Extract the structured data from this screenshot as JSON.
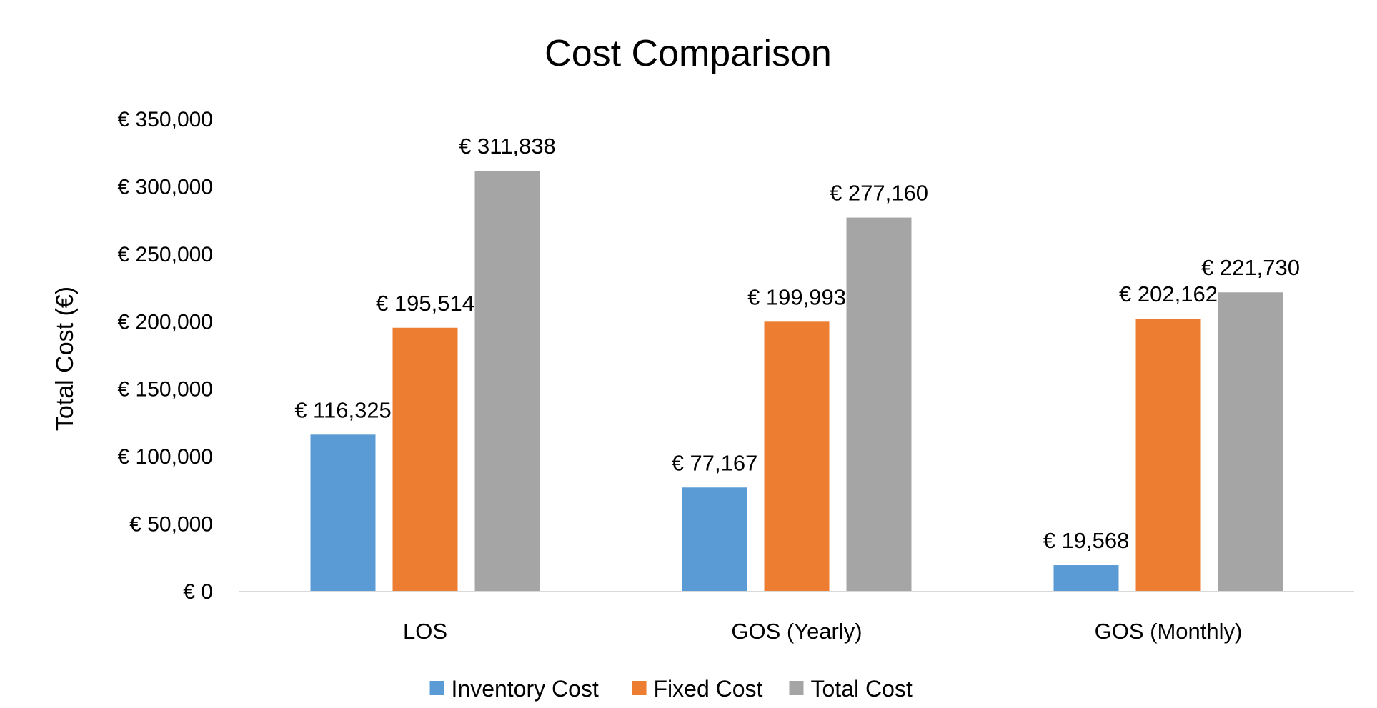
{
  "chart_data": {
    "type": "bar",
    "title": "Cost Comparison",
    "ylabel": "Total Cost (€)",
    "xlabel": "",
    "ylim": [
      0,
      350000
    ],
    "y_ticks": [
      0,
      50000,
      100000,
      150000,
      200000,
      250000,
      300000,
      350000
    ],
    "y_tick_labels": [
      "€ 0",
      "€ 50,000",
      "€ 100,000",
      "€ 150,000",
      "€ 200,000",
      "€ 250,000",
      "€ 300,000",
      "€ 350,000"
    ],
    "categories": [
      "LOS",
      "GOS (Yearly)",
      "GOS (Monthly)"
    ],
    "series": [
      {
        "name": "Inventory Cost",
        "color": "#5B9BD5",
        "values": [
          116325,
          77167,
          19568
        ],
        "labels": [
          "€ 116,325",
          "€ 77,167",
          "€ 19,568"
        ]
      },
      {
        "name": "Fixed Cost",
        "color": "#ED7D31",
        "values": [
          195514,
          199993,
          202162
        ],
        "labels": [
          "€ 195,514",
          "€ 199,993",
          "€ 202,162"
        ]
      },
      {
        "name": "Total Cost",
        "color": "#A5A5A5",
        "values": [
          311838,
          277160,
          221730
        ],
        "labels": [
          "€ 311,838",
          "€ 277,160",
          "€ 221,730"
        ]
      }
    ],
    "grid": false,
    "legend_position": "bottom",
    "axis_color": "#D9D9D9"
  }
}
